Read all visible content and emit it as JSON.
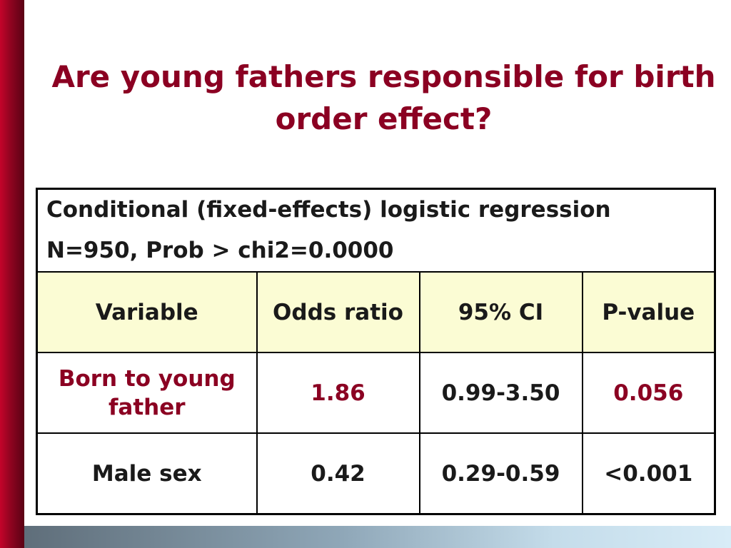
{
  "slide": {
    "title": "Are young fathers responsible for birth order effect?",
    "accent_color": "#8b0022",
    "header_fill": "#fbfcd4"
  },
  "table": {
    "caption_line1": "Conditional (fixed-effects) logistic regression",
    "caption_line2": "N=950, Prob > chi2=0.0000",
    "headers": [
      "Variable",
      "Odds ratio",
      "95% CI",
      "P-value"
    ],
    "rows": [
      {
        "variable": "Born to young father",
        "odds_ratio": "1.86",
        "ci": "0.99-3.50",
        "p_value": "0.056"
      },
      {
        "variable": "Male sex",
        "odds_ratio": "0.42",
        "ci": "0.29-0.59",
        "p_value": "<0.001"
      }
    ]
  }
}
